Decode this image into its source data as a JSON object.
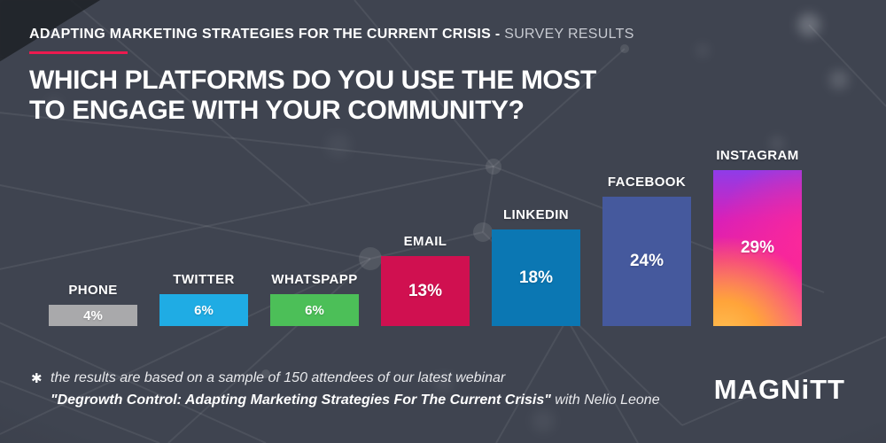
{
  "header": {
    "kicker_bold": "ADAPTING MARKETING STRATEGIES FOR THE CURRENT CRISIS -",
    "kicker_light": "SURVEY RESULTS",
    "accent_color": "#ed1a4f",
    "title_line1": "WHICH PLATFORMS DO YOU USE THE MOST",
    "title_line2": "TO ENGAGE WITH YOUR COMMUNITY?"
  },
  "chart_data": {
    "type": "bar",
    "title": "WHICH PLATFORMS DO YOU USE THE MOST TO ENGAGE WITH YOUR COMMUNITY?",
    "categories": [
      "PHONE",
      "TWITTER",
      "WHATSPAPP",
      "EMAIL",
      "LINKEDIN",
      "FACEBOOK",
      "INSTAGRAM"
    ],
    "values": [
      4,
      6,
      6,
      13,
      18,
      24,
      29
    ],
    "value_labels": [
      "4%",
      "6%",
      "6%",
      "13%",
      "18%",
      "24%",
      "29%"
    ],
    "unit": "%",
    "ylim": [
      0,
      29
    ],
    "grid": false,
    "legend": "none",
    "value_label_position": "centered-inside-bar",
    "category_label_position": "above-bar",
    "bar_colors": [
      "#a9a9ab",
      "#1face4",
      "#4cbf58",
      "#d01050",
      "#0b77b3",
      "#45599d",
      "instagram-gradient"
    ],
    "instagram_gradient": {
      "purple": "#8f3ce8",
      "pink": "#f0219c",
      "orange": "#ffa43a",
      "yellow": "#ffc153",
      "light_pink": "#fa4f9e"
    }
  },
  "footnote": {
    "asterisk": "✱",
    "line1": "the results are based on a sample of 150 attendees of our latest webinar",
    "line2_bold": "\"Degrowth Control: Adapting Marketing Strategies For The Current Crisis\"",
    "line2_regular": "with Nelio Leone"
  },
  "branding": {
    "logo_text": "MAGNiTT"
  },
  "theme": {
    "background": "#3f4450",
    "text": "#ffffff",
    "accent": "#ed1a4f"
  }
}
